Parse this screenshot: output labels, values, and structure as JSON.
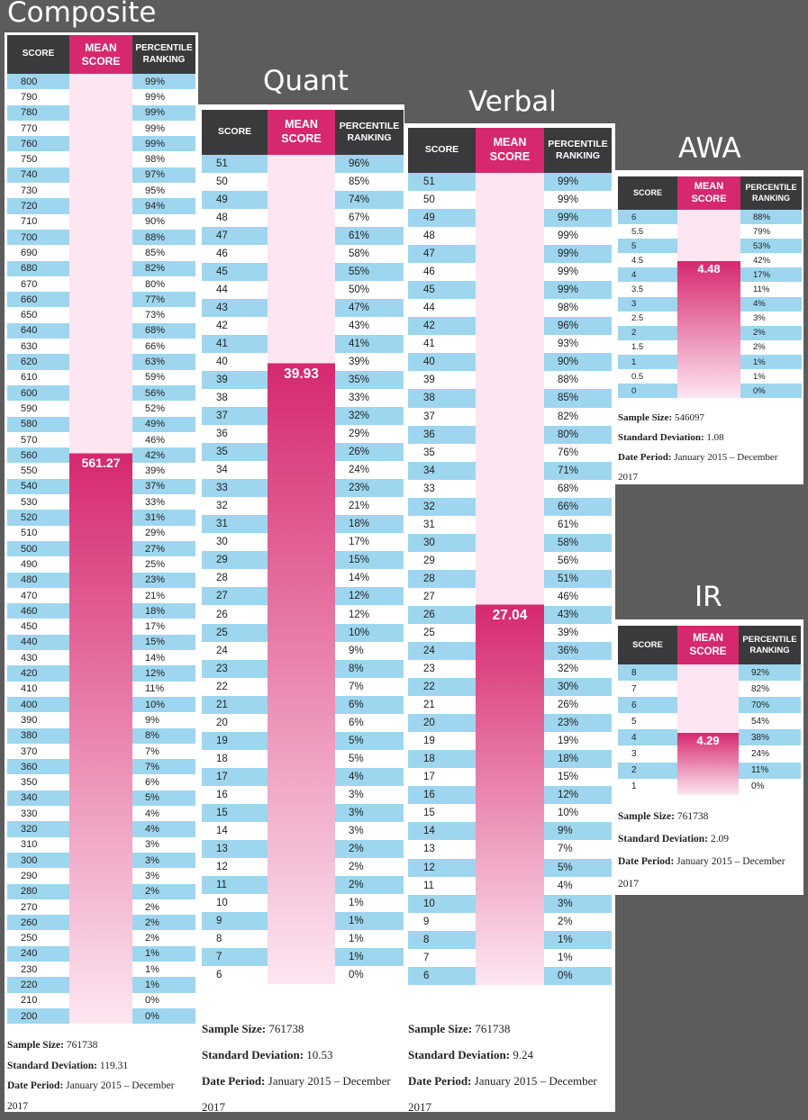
{
  "colors": {
    "background": "#5c5c5c",
    "header_dark": "#3a3a3c",
    "header_accent": "#d6286f",
    "row_stripe": "#9dd6ee",
    "mean_light": "#fde6f1",
    "mean_dark": "#d6286f"
  },
  "labels": {
    "sample_size": "Sample Size:",
    "std_dev": "Standard Deviation:",
    "date_period": "Date Period:"
  },
  "chart_data": [
    {
      "type": "table",
      "title": "Composite",
      "headers": [
        "SCORE",
        "MEAN SCORE",
        "PERCENTILE RANKING"
      ],
      "mean_label": "561.27",
      "mean_score": 561.27,
      "scores": [
        "800",
        "790",
        "780",
        "770",
        "760",
        "750",
        "740",
        "730",
        "720",
        "710",
        "700",
        "690",
        "680",
        "670",
        "660",
        "650",
        "640",
        "630",
        "620",
        "610",
        "600",
        "590",
        "580",
        "570",
        "560",
        "550",
        "540",
        "530",
        "520",
        "510",
        "500",
        "490",
        "480",
        "470",
        "460",
        "450",
        "440",
        "430",
        "420",
        "410",
        "400",
        "390",
        "380",
        "370",
        "360",
        "350",
        "340",
        "330",
        "320",
        "310",
        "300",
        "290",
        "280",
        "270",
        "260",
        "250",
        "240",
        "230",
        "220",
        "210",
        "200"
      ],
      "percentiles": [
        "99%",
        "99%",
        "99%",
        "99%",
        "99%",
        "98%",
        "97%",
        "95%",
        "94%",
        "90%",
        "88%",
        "85%",
        "82%",
        "80%",
        "77%",
        "73%",
        "68%",
        "66%",
        "63%",
        "59%",
        "56%",
        "52%",
        "49%",
        "46%",
        "42%",
        "39%",
        "37%",
        "33%",
        "31%",
        "29%",
        "27%",
        "25%",
        "23%",
        "21%",
        "18%",
        "17%",
        "15%",
        "14%",
        "12%",
        "11%",
        "10%",
        "9%",
        "8%",
        "7%",
        "7%",
        "6%",
        "5%",
        "4%",
        "4%",
        "3%",
        "3%",
        "3%",
        "2%",
        "2%",
        "2%",
        "2%",
        "1%",
        "1%",
        "1%",
        "0%",
        "0%"
      ],
      "sample_size": "761738",
      "std_dev": "119.31",
      "date_period": "January 2015 – December 2017"
    },
    {
      "type": "table",
      "title": "Quant",
      "headers": [
        "SCORE",
        "MEAN SCORE",
        "PERCENTILE RANKING"
      ],
      "mean_label": "39.93",
      "mean_score": 39.93,
      "scores": [
        "51",
        "50",
        "49",
        "48",
        "47",
        "46",
        "45",
        "44",
        "43",
        "42",
        "41",
        "40",
        "39",
        "38",
        "37",
        "36",
        "35",
        "34",
        "33",
        "32",
        "31",
        "30",
        "29",
        "28",
        "27",
        "26",
        "25",
        "24",
        "23",
        "22",
        "21",
        "20",
        "19",
        "18",
        "17",
        "16",
        "15",
        "14",
        "13",
        "12",
        "11",
        "10",
        "9",
        "8",
        "7",
        "6"
      ],
      "percentiles": [
        "96%",
        "85%",
        "74%",
        "67%",
        "61%",
        "58%",
        "55%",
        "50%",
        "47%",
        "43%",
        "41%",
        "39%",
        "35%",
        "33%",
        "32%",
        "29%",
        "26%",
        "24%",
        "23%",
        "21%",
        "18%",
        "17%",
        "15%",
        "14%",
        "12%",
        "12%",
        "10%",
        "9%",
        "8%",
        "7%",
        "6%",
        "6%",
        "5%",
        "5%",
        "4%",
        "3%",
        "3%",
        "3%",
        "2%",
        "2%",
        "2%",
        "1%",
        "1%",
        "1%",
        "1%",
        "0%"
      ],
      "sample_size": "761738",
      "std_dev": "10.53",
      "date_period": "January 2015 – December 2017"
    },
    {
      "type": "table",
      "title": "Verbal",
      "headers": [
        "SCORE",
        "MEAN SCORE",
        "PERCENTILE RANKING"
      ],
      "mean_label": "27.04",
      "mean_score": 27.04,
      "scores": [
        "51",
        "50",
        "49",
        "48",
        "47",
        "46",
        "45",
        "44",
        "42",
        "41",
        "40",
        "39",
        "38",
        "37",
        "36",
        "35",
        "34",
        "33",
        "32",
        "31",
        "30",
        "29",
        "28",
        "27",
        "26",
        "25",
        "24",
        "23",
        "22",
        "21",
        "20",
        "19",
        "18",
        "17",
        "16",
        "15",
        "14",
        "13",
        "12",
        "11",
        "10",
        "9",
        "8",
        "7",
        "6"
      ],
      "percentiles": [
        "99%",
        "99%",
        "99%",
        "99%",
        "99%",
        "99%",
        "99%",
        "98%",
        "96%",
        "93%",
        "90%",
        "88%",
        "85%",
        "82%",
        "80%",
        "76%",
        "71%",
        "68%",
        "66%",
        "61%",
        "58%",
        "56%",
        "51%",
        "46%",
        "43%",
        "39%",
        "36%",
        "32%",
        "30%",
        "26%",
        "23%",
        "19%",
        "18%",
        "15%",
        "12%",
        "10%",
        "9%",
        "7%",
        "5%",
        "4%",
        "3%",
        "2%",
        "1%",
        "1%",
        "0%"
      ],
      "sample_size": "761738",
      "std_dev": "9.24",
      "date_period": "January 2015 – December 2017"
    },
    {
      "type": "table",
      "title": "AWA",
      "headers": [
        "SCORE",
        "MEAN SCORE",
        "PERCENTILE RANKING"
      ],
      "mean_label": "4.48",
      "mean_score": 4.48,
      "scores": [
        "6",
        "5.5",
        "5",
        "4.5",
        "4",
        "3.5",
        "3",
        "2.5",
        "2",
        "1.5",
        "1",
        "0.5",
        "0"
      ],
      "percentiles": [
        "88%",
        "79%",
        "53%",
        "42%",
        "17%",
        "11%",
        "4%",
        "3%",
        "2%",
        "2%",
        "1%",
        "1%",
        "0%"
      ],
      "sample_size": "546097",
      "std_dev": "1.08",
      "date_period": "January 2015 – December 2017"
    },
    {
      "type": "table",
      "title": "IR",
      "headers": [
        "SCORE",
        "MEAN SCORE",
        "PERCENTILE RANKING"
      ],
      "mean_label": "4.29",
      "mean_score": 4.29,
      "scores": [
        "8",
        "7",
        "6",
        "5",
        "4",
        "3",
        "2",
        "1"
      ],
      "percentiles": [
        "92%",
        "82%",
        "70%",
        "54%",
        "38%",
        "24%",
        "11%",
        "0%"
      ],
      "sample_size": "761738",
      "std_dev": "2.09",
      "date_period": "January 2015 – December 2017"
    }
  ]
}
